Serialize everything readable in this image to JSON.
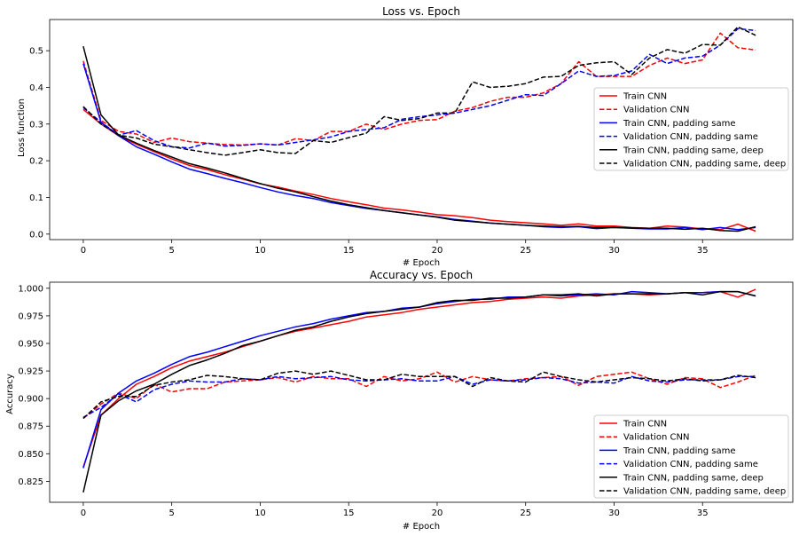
{
  "chart_data": [
    {
      "type": "line",
      "title": "Loss vs. Epoch",
      "xlabel": "# Epoch",
      "ylabel": "Loss function",
      "xlim": [
        -1.9,
        40.1
      ],
      "ylim": [
        -0.015,
        0.585
      ],
      "xticks": [
        0,
        5,
        10,
        15,
        20,
        25,
        30,
        35
      ],
      "yticks": [
        0.0,
        0.1,
        0.2,
        0.3,
        0.4,
        0.5
      ],
      "ytick_decimals": 1,
      "legend_position": "center-right",
      "grid": false,
      "series": [
        {
          "name": "Train CNN",
          "color": "#ff0000",
          "dashed": false,
          "values": [
            0.34,
            0.3,
            0.268,
            0.245,
            0.225,
            0.205,
            0.187,
            0.176,
            0.162,
            0.15,
            0.137,
            0.128,
            0.117,
            0.108,
            0.097,
            0.088,
            0.08,
            0.071,
            0.066,
            0.06,
            0.053,
            0.05,
            0.045,
            0.038,
            0.034,
            0.031,
            0.028,
            0.024,
            0.028,
            0.022,
            0.022,
            0.018,
            0.016,
            0.022,
            0.019,
            0.014,
            0.012,
            0.027,
            0.008
          ]
        },
        {
          "name": "Validation CNN",
          "color": "#ff0000",
          "dashed": true,
          "values": [
            0.472,
            0.31,
            0.28,
            0.273,
            0.25,
            0.262,
            0.252,
            0.248,
            0.244,
            0.243,
            0.246,
            0.243,
            0.26,
            0.255,
            0.28,
            0.28,
            0.3,
            0.285,
            0.3,
            0.31,
            0.312,
            0.335,
            0.345,
            0.362,
            0.373,
            0.373,
            0.385,
            0.41,
            0.47,
            0.43,
            0.43,
            0.43,
            0.46,
            0.48,
            0.465,
            0.475,
            0.548,
            0.508,
            0.502
          ]
        },
        {
          "name": "Train CNN, padding same",
          "color": "#0000ff",
          "dashed": false,
          "values": [
            0.465,
            0.305,
            0.268,
            0.238,
            0.218,
            0.197,
            0.177,
            0.165,
            0.152,
            0.14,
            0.127,
            0.115,
            0.105,
            0.097,
            0.086,
            0.078,
            0.07,
            0.064,
            0.058,
            0.052,
            0.047,
            0.04,
            0.035,
            0.03,
            0.027,
            0.024,
            0.02,
            0.018,
            0.02,
            0.015,
            0.018,
            0.016,
            0.014,
            0.014,
            0.018,
            0.012,
            0.018,
            0.012,
            0.018
          ]
        },
        {
          "name": "Validation CNN, padding same",
          "color": "#0000ff",
          "dashed": true,
          "values": [
            0.345,
            0.305,
            0.27,
            0.282,
            0.255,
            0.238,
            0.235,
            0.248,
            0.24,
            0.242,
            0.246,
            0.243,
            0.25,
            0.257,
            0.265,
            0.28,
            0.285,
            0.29,
            0.313,
            0.32,
            0.325,
            0.33,
            0.34,
            0.35,
            0.365,
            0.38,
            0.378,
            0.41,
            0.445,
            0.43,
            0.432,
            0.445,
            0.49,
            0.465,
            0.48,
            0.485,
            0.515,
            0.56,
            0.555
          ]
        },
        {
          "name": "Train CNN, padding same, deep",
          "color": "#000000",
          "dashed": false,
          "values": [
            0.512,
            0.325,
            0.27,
            0.248,
            0.228,
            0.21,
            0.192,
            0.18,
            0.167,
            0.152,
            0.138,
            0.125,
            0.115,
            0.102,
            0.09,
            0.08,
            0.072,
            0.064,
            0.058,
            0.052,
            0.046,
            0.038,
            0.034,
            0.03,
            0.027,
            0.024,
            0.022,
            0.02,
            0.021,
            0.018,
            0.018,
            0.017,
            0.016,
            0.016,
            0.013,
            0.016,
            0.01,
            0.008,
            0.02
          ]
        },
        {
          "name": "Validation CNN, padding same, deep",
          "color": "#000000",
          "dashed": true,
          "values": [
            0.348,
            0.3,
            0.27,
            0.262,
            0.245,
            0.238,
            0.23,
            0.222,
            0.215,
            0.222,
            0.23,
            0.222,
            0.22,
            0.255,
            0.25,
            0.263,
            0.275,
            0.32,
            0.31,
            0.315,
            0.33,
            0.33,
            0.415,
            0.4,
            0.403,
            0.41,
            0.428,
            0.43,
            0.46,
            0.467,
            0.47,
            0.435,
            0.48,
            0.503,
            0.493,
            0.517,
            0.515,
            0.565,
            0.542
          ]
        }
      ]
    },
    {
      "type": "line",
      "title": "Accuracy vs. Epoch",
      "xlabel": "# Epoch",
      "ylabel": "Accuracy",
      "xlim": [
        -1.9,
        40.1
      ],
      "ylim": [
        0.806,
        1.0055
      ],
      "xticks": [
        0,
        5,
        10,
        15,
        20,
        25,
        30,
        35
      ],
      "yticks": [
        0.825,
        0.85,
        0.875,
        0.9,
        0.925,
        0.95,
        0.975,
        1.0
      ],
      "ytick_decimals": 3,
      "legend_position": "lower-right",
      "grid": false,
      "series": [
        {
          "name": "Train CNN",
          "color": "#ff0000",
          "dashed": false,
          "values": [
            0.838,
            0.885,
            0.9,
            0.913,
            0.92,
            0.928,
            0.934,
            0.938,
            0.942,
            0.947,
            0.952,
            0.957,
            0.961,
            0.964,
            0.967,
            0.97,
            0.974,
            0.976,
            0.978,
            0.981,
            0.983,
            0.985,
            0.987,
            0.988,
            0.99,
            0.991,
            0.992,
            0.991,
            0.993,
            0.994,
            0.995,
            0.995,
            0.994,
            0.995,
            0.996,
            0.996,
            0.997,
            0.992,
            0.999
          ]
        },
        {
          "name": "Validation CNN",
          "color": "#ff0000",
          "dashed": true,
          "values": [
            0.882,
            0.895,
            0.905,
            0.9,
            0.913,
            0.906,
            0.909,
            0.909,
            0.915,
            0.916,
            0.917,
            0.919,
            0.915,
            0.92,
            0.918,
            0.918,
            0.911,
            0.92,
            0.916,
            0.918,
            0.924,
            0.915,
            0.92,
            0.917,
            0.916,
            0.918,
            0.919,
            0.92,
            0.912,
            0.92,
            0.922,
            0.924,
            0.918,
            0.913,
            0.919,
            0.918,
            0.91,
            0.915,
            0.921
          ]
        },
        {
          "name": "Train CNN, padding same",
          "color": "#0000ff",
          "dashed": false,
          "values": [
            0.837,
            0.89,
            0.905,
            0.916,
            0.923,
            0.931,
            0.938,
            0.942,
            0.947,
            0.952,
            0.957,
            0.961,
            0.965,
            0.968,
            0.972,
            0.975,
            0.978,
            0.979,
            0.982,
            0.983,
            0.986,
            0.988,
            0.99,
            0.99,
            0.992,
            0.992,
            0.994,
            0.993,
            0.994,
            0.995,
            0.994,
            0.997,
            0.996,
            0.995,
            0.996,
            0.996,
            0.997,
            0.997,
            0.993
          ]
        },
        {
          "name": "Validation CNN, padding same",
          "color": "#0000ff",
          "dashed": true,
          "values": [
            0.883,
            0.892,
            0.904,
            0.897,
            0.908,
            0.913,
            0.916,
            0.915,
            0.915,
            0.918,
            0.917,
            0.92,
            0.918,
            0.919,
            0.92,
            0.917,
            0.916,
            0.917,
            0.918,
            0.916,
            0.916,
            0.92,
            0.913,
            0.917,
            0.916,
            0.917,
            0.919,
            0.918,
            0.914,
            0.915,
            0.914,
            0.92,
            0.916,
            0.915,
            0.917,
            0.917,
            0.917,
            0.92,
            0.92
          ]
        },
        {
          "name": "Train CNN, padding same, deep",
          "color": "#000000",
          "dashed": false,
          "values": [
            0.815,
            0.885,
            0.898,
            0.907,
            0.913,
            0.922,
            0.93,
            0.935,
            0.941,
            0.948,
            0.952,
            0.957,
            0.962,
            0.965,
            0.97,
            0.974,
            0.977,
            0.979,
            0.981,
            0.983,
            0.987,
            0.989,
            0.989,
            0.991,
            0.991,
            0.992,
            0.994,
            0.994,
            0.995,
            0.993,
            0.995,
            0.995,
            0.995,
            0.995,
            0.996,
            0.994,
            0.997,
            0.997,
            0.993
          ]
        },
        {
          "name": "Validation CNN, padding same, deep",
          "color": "#000000",
          "dashed": true,
          "values": [
            0.882,
            0.897,
            0.902,
            0.902,
            0.912,
            0.915,
            0.917,
            0.921,
            0.92,
            0.918,
            0.917,
            0.923,
            0.925,
            0.922,
            0.925,
            0.921,
            0.917,
            0.917,
            0.922,
            0.92,
            0.92,
            0.92,
            0.911,
            0.919,
            0.916,
            0.915,
            0.924,
            0.92,
            0.917,
            0.915,
            0.917,
            0.919,
            0.918,
            0.916,
            0.918,
            0.916,
            0.917,
            0.921,
            0.919
          ]
        }
      ]
    }
  ]
}
